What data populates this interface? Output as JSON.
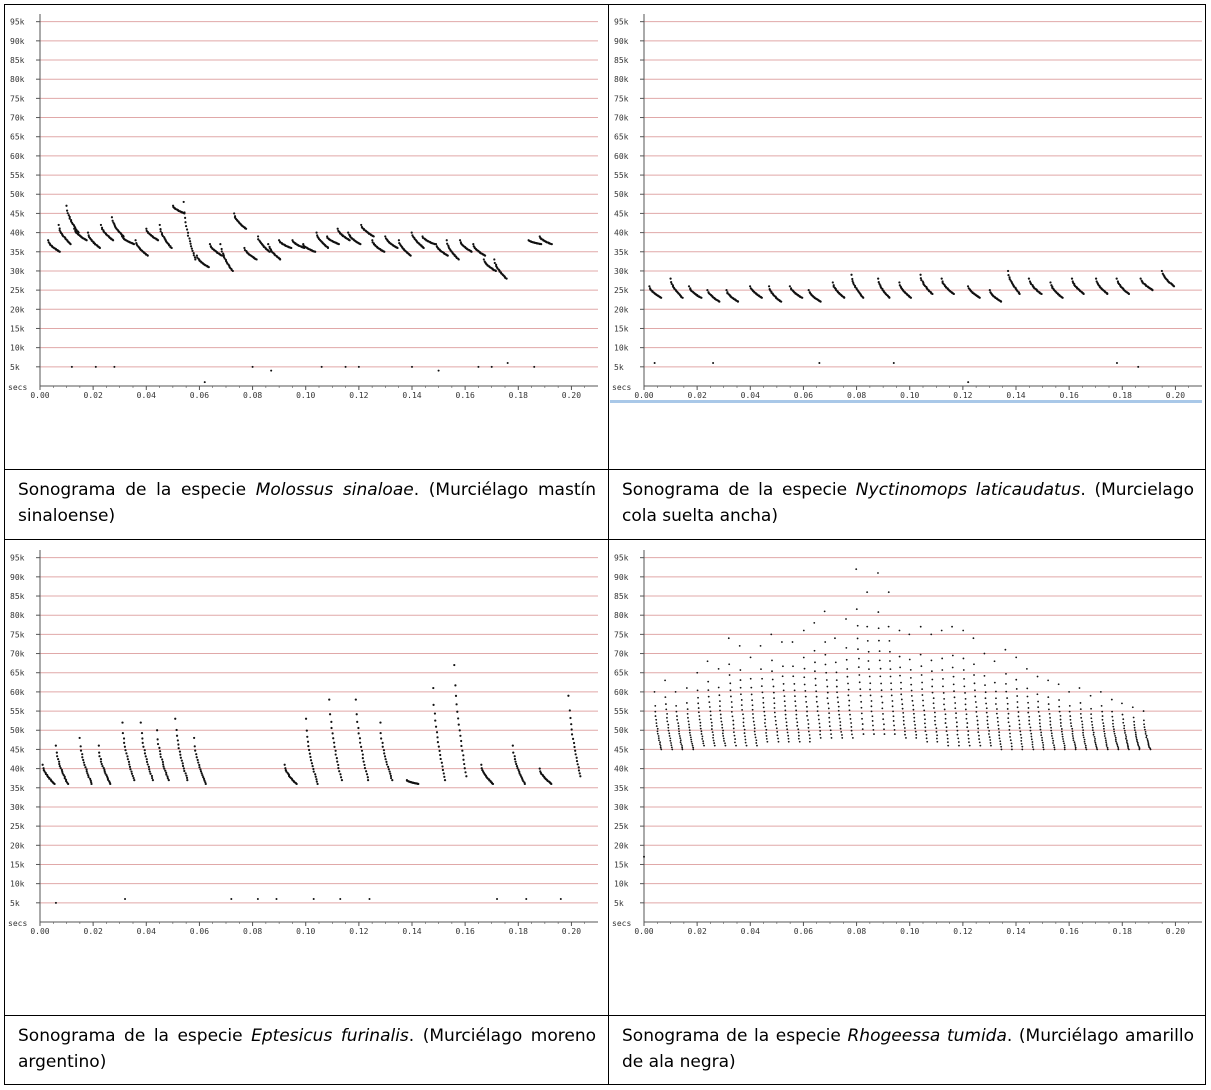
{
  "panels": [
    {
      "id": "molossus",
      "caption_prefix": "Sonograma de la especie",
      "species": "Molossus sinaloae",
      "caption_suffix": ". (Murciélago mastín sinaloense)",
      "chart_data": {
        "type": "scatter",
        "xlabel": "secs",
        "ylim": [
          0,
          97
        ],
        "xlim": [
          0,
          0.21
        ],
        "y_ticks": [
          "5k",
          "10k",
          "15k",
          "20k",
          "25k",
          "30k",
          "35k",
          "40k",
          "45k",
          "50k",
          "55k",
          "60k",
          "65k",
          "70k",
          "75k",
          "80k",
          "85k",
          "90k",
          "95k"
        ],
        "x_ticks": [
          "0.00",
          "0.02",
          "0.04",
          "0.06",
          "0.08",
          "0.10",
          "0.12",
          "0.14",
          "0.16",
          "0.18",
          "0.20"
        ],
        "calls": [
          {
            "t": 0.003,
            "f_start": 38,
            "f_end": 35
          },
          {
            "t": 0.007,
            "f_start": 42,
            "f_end": 37
          },
          {
            "t": 0.01,
            "f_start": 47,
            "f_end": 40
          },
          {
            "t": 0.013,
            "f_start": 41,
            "f_end": 38
          },
          {
            "t": 0.018,
            "f_start": 40,
            "f_end": 36
          },
          {
            "t": 0.023,
            "f_start": 42,
            "f_end": 38
          },
          {
            "t": 0.027,
            "f_start": 44,
            "f_end": 39
          },
          {
            "t": 0.031,
            "f_start": 39,
            "f_end": 37
          },
          {
            "t": 0.036,
            "f_start": 38,
            "f_end": 34
          },
          {
            "t": 0.04,
            "f_start": 41,
            "f_end": 38
          },
          {
            "t": 0.045,
            "f_start": 42,
            "f_end": 36
          },
          {
            "t": 0.05,
            "f_start": 47,
            "f_end": 45
          },
          {
            "t": 0.054,
            "f_start": 48,
            "f_end": 33
          },
          {
            "t": 0.059,
            "f_start": 34,
            "f_end": 31
          },
          {
            "t": 0.064,
            "f_start": 37,
            "f_end": 34
          },
          {
            "t": 0.068,
            "f_start": 37,
            "f_end": 30
          },
          {
            "t": 0.073,
            "f_start": 45,
            "f_end": 41
          },
          {
            "t": 0.077,
            "f_start": 36,
            "f_end": 33
          },
          {
            "t": 0.082,
            "f_start": 39,
            "f_end": 35
          },
          {
            "t": 0.086,
            "f_start": 37,
            "f_end": 33
          },
          {
            "t": 0.09,
            "f_start": 38,
            "f_end": 36
          },
          {
            "t": 0.095,
            "f_start": 38,
            "f_end": 36
          },
          {
            "t": 0.099,
            "f_start": 37,
            "f_end": 35
          },
          {
            "t": 0.104,
            "f_start": 40,
            "f_end": 36
          },
          {
            "t": 0.108,
            "f_start": 39,
            "f_end": 37
          },
          {
            "t": 0.112,
            "f_start": 41,
            "f_end": 38
          },
          {
            "t": 0.116,
            "f_start": 40,
            "f_end": 37
          },
          {
            "t": 0.121,
            "f_start": 42,
            "f_end": 39
          },
          {
            "t": 0.125,
            "f_start": 38,
            "f_end": 35
          },
          {
            "t": 0.13,
            "f_start": 39,
            "f_end": 36
          },
          {
            "t": 0.135,
            "f_start": 38,
            "f_end": 34
          },
          {
            "t": 0.14,
            "f_start": 40,
            "f_end": 36
          },
          {
            "t": 0.144,
            "f_start": 39,
            "f_end": 37
          },
          {
            "t": 0.149,
            "f_start": 37,
            "f_end": 34
          },
          {
            "t": 0.153,
            "f_start": 38,
            "f_end": 33
          },
          {
            "t": 0.158,
            "f_start": 38,
            "f_end": 35
          },
          {
            "t": 0.163,
            "f_start": 37,
            "f_end": 34
          },
          {
            "t": 0.167,
            "f_start": 33,
            "f_end": 30
          },
          {
            "t": 0.171,
            "f_start": 33,
            "f_end": 28
          },
          {
            "t": 0.184,
            "f_start": 38,
            "f_end": 37
          },
          {
            "t": 0.188,
            "f_start": 39,
            "f_end": 37
          }
        ],
        "noise": [
          {
            "t": 0.012,
            "f": 5
          },
          {
            "t": 0.021,
            "f": 5
          },
          {
            "t": 0.028,
            "f": 5
          },
          {
            "t": 0.062,
            "f": 1
          },
          {
            "t": 0.08,
            "f": 5
          },
          {
            "t": 0.087,
            "f": 4
          },
          {
            "t": 0.106,
            "f": 5
          },
          {
            "t": 0.115,
            "f": 5
          },
          {
            "t": 0.12,
            "f": 5
          },
          {
            "t": 0.14,
            "f": 5
          },
          {
            "t": 0.15,
            "f": 4
          },
          {
            "t": 0.165,
            "f": 5
          },
          {
            "t": 0.17,
            "f": 5
          },
          {
            "t": 0.176,
            "f": 6
          },
          {
            "t": 0.186,
            "f": 5
          }
        ]
      }
    },
    {
      "id": "nyctinomops",
      "caption_prefix": "Sonograma de la especie",
      "species": "Nyctinomops laticaudatus",
      "caption_suffix": ". (Murcielago cola suelta ancha)",
      "chart_data": {
        "type": "scatter",
        "xlabel": "secs",
        "ylim": [
          0,
          97
        ],
        "xlim": [
          0,
          0.21
        ],
        "y_ticks": [
          "5k",
          "10k",
          "15k",
          "20k",
          "25k",
          "30k",
          "35k",
          "40k",
          "45k",
          "50k",
          "55k",
          "60k",
          "65k",
          "70k",
          "75k",
          "80k",
          "85k",
          "90k",
          "95k"
        ],
        "x_ticks": [
          "0.00",
          "0.02",
          "0.04",
          "0.06",
          "0.08",
          "0.10",
          "0.12",
          "0.14",
          "0.16",
          "0.18",
          "0.20"
        ],
        "calls": [
          {
            "t": 0.002,
            "f_start": 26,
            "f_end": 23
          },
          {
            "t": 0.01,
            "f_start": 28,
            "f_end": 23
          },
          {
            "t": 0.017,
            "f_start": 26,
            "f_end": 23
          },
          {
            "t": 0.024,
            "f_start": 25,
            "f_end": 22
          },
          {
            "t": 0.031,
            "f_start": 25,
            "f_end": 22
          },
          {
            "t": 0.04,
            "f_start": 26,
            "f_end": 23
          },
          {
            "t": 0.047,
            "f_start": 26,
            "f_end": 22
          },
          {
            "t": 0.055,
            "f_start": 26,
            "f_end": 23
          },
          {
            "t": 0.062,
            "f_start": 25,
            "f_end": 22
          },
          {
            "t": 0.071,
            "f_start": 27,
            "f_end": 23
          },
          {
            "t": 0.078,
            "f_start": 29,
            "f_end": 23
          },
          {
            "t": 0.088,
            "f_start": 28,
            "f_end": 23
          },
          {
            "t": 0.096,
            "f_start": 27,
            "f_end": 23
          },
          {
            "t": 0.104,
            "f_start": 29,
            "f_end": 24
          },
          {
            "t": 0.112,
            "f_start": 28,
            "f_end": 24
          },
          {
            "t": 0.122,
            "f_start": 26,
            "f_end": 23
          },
          {
            "t": 0.13,
            "f_start": 25,
            "f_end": 22
          },
          {
            "t": 0.137,
            "f_start": 30,
            "f_end": 24
          },
          {
            "t": 0.145,
            "f_start": 28,
            "f_end": 24
          },
          {
            "t": 0.153,
            "f_start": 27,
            "f_end": 23
          },
          {
            "t": 0.161,
            "f_start": 28,
            "f_end": 24
          },
          {
            "t": 0.17,
            "f_start": 28,
            "f_end": 24
          },
          {
            "t": 0.178,
            "f_start": 28,
            "f_end": 24
          },
          {
            "t": 0.187,
            "f_start": 28,
            "f_end": 25
          },
          {
            "t": 0.195,
            "f_start": 30,
            "f_end": 26
          }
        ],
        "noise": [
          {
            "t": 0.004,
            "f": 6
          },
          {
            "t": 0.026,
            "f": 6
          },
          {
            "t": 0.066,
            "f": 6
          },
          {
            "t": 0.094,
            "f": 6
          },
          {
            "t": 0.122,
            "f": 1
          },
          {
            "t": 0.178,
            "f": 6
          },
          {
            "t": 0.186,
            "f": 5
          }
        ]
      }
    },
    {
      "id": "eptesicus",
      "caption_prefix": "Sonograma de la especie",
      "species": "Eptesicus furinalis",
      "caption_suffix": ". (Murciélago moreno argentino)",
      "chart_data": {
        "type": "scatter",
        "xlabel": "secs",
        "ylim": [
          0,
          97
        ],
        "xlim": [
          0,
          0.21
        ],
        "y_ticks": [
          "5k",
          "10k",
          "15k",
          "20k",
          "25k",
          "30k",
          "35k",
          "40k",
          "45k",
          "50k",
          "55k",
          "60k",
          "65k",
          "70k",
          "75k",
          "80k",
          "85k",
          "90k",
          "95k"
        ],
        "x_ticks": [
          "0.00",
          "0.02",
          "0.04",
          "0.06",
          "0.08",
          "0.10",
          "0.12",
          "0.14",
          "0.16",
          "0.18",
          "0.20"
        ],
        "calls": [
          {
            "t": 0.001,
            "f_start": 41,
            "f_end": 36
          },
          {
            "t": 0.006,
            "f_start": 46,
            "f_end": 36
          },
          {
            "t": 0.015,
            "f_start": 48,
            "f_end": 36
          },
          {
            "t": 0.022,
            "f_start": 46,
            "f_end": 36
          },
          {
            "t": 0.031,
            "f_start": 52,
            "f_end": 37
          },
          {
            "t": 0.038,
            "f_start": 52,
            "f_end": 37
          },
          {
            "t": 0.044,
            "f_start": 50,
            "f_end": 37
          },
          {
            "t": 0.051,
            "f_start": 53,
            "f_end": 37
          },
          {
            "t": 0.058,
            "f_start": 48,
            "f_end": 36
          },
          {
            "t": 0.092,
            "f_start": 41,
            "f_end": 36
          },
          {
            "t": 0.1,
            "f_start": 53,
            "f_end": 36
          },
          {
            "t": 0.109,
            "f_start": 58,
            "f_end": 37
          },
          {
            "t": 0.119,
            "f_start": 58,
            "f_end": 37
          },
          {
            "t": 0.128,
            "f_start": 52,
            "f_end": 37
          },
          {
            "t": 0.138,
            "f_start": 37,
            "f_end": 36
          },
          {
            "t": 0.148,
            "f_start": 61,
            "f_end": 37
          },
          {
            "t": 0.156,
            "f_start": 67,
            "f_end": 38
          },
          {
            "t": 0.166,
            "f_start": 41,
            "f_end": 36
          },
          {
            "t": 0.178,
            "f_start": 46,
            "f_end": 36
          },
          {
            "t": 0.188,
            "f_start": 40,
            "f_end": 36
          },
          {
            "t": 0.199,
            "f_start": 59,
            "f_end": 38
          }
        ],
        "noise": [
          {
            "t": 0.006,
            "f": 5
          },
          {
            "t": 0.032,
            "f": 6
          },
          {
            "t": 0.072,
            "f": 6
          },
          {
            "t": 0.082,
            "f": 6
          },
          {
            "t": 0.089,
            "f": 6
          },
          {
            "t": 0.103,
            "f": 6
          },
          {
            "t": 0.113,
            "f": 6
          },
          {
            "t": 0.124,
            "f": 6
          },
          {
            "t": 0.172,
            "f": 6
          },
          {
            "t": 0.183,
            "f": 6
          },
          {
            "t": 0.196,
            "f": 6
          }
        ]
      }
    },
    {
      "id": "rhogeessa",
      "caption_prefix": "Sonograma de la especie",
      "species": "Rhogeessa tumida",
      "caption_suffix": ". (Murciélago amarillo de ala negra)",
      "chart_data": {
        "type": "scatter",
        "xlabel": "secs",
        "ylim": [
          0,
          97
        ],
        "xlim": [
          0,
          0.21
        ],
        "y_ticks": [
          "5k",
          "10k",
          "15k",
          "20k",
          "25k",
          "30k",
          "35k",
          "40k",
          "45k",
          "50k",
          "55k",
          "60k",
          "65k",
          "70k",
          "75k",
          "80k",
          "85k",
          "90k",
          "95k"
        ],
        "x_ticks": [
          "0.00",
          "0.02",
          "0.04",
          "0.06",
          "0.08",
          "0.10",
          "0.12",
          "0.14",
          "0.16",
          "0.18",
          "0.20"
        ],
        "calls": [
          {
            "t": 0.004,
            "f_start": 60,
            "f_end": 45
          },
          {
            "t": 0.008,
            "f_start": 63,
            "f_end": 45
          },
          {
            "t": 0.012,
            "f_start": 60,
            "f_end": 45
          },
          {
            "t": 0.016,
            "f_start": 61,
            "f_end": 45
          },
          {
            "t": 0.02,
            "f_start": 65,
            "f_end": 46
          },
          {
            "t": 0.024,
            "f_start": 68,
            "f_end": 46
          },
          {
            "t": 0.028,
            "f_start": 66,
            "f_end": 46
          },
          {
            "t": 0.032,
            "f_start": 74,
            "f_end": 46
          },
          {
            "t": 0.036,
            "f_start": 72,
            "f_end": 46
          },
          {
            "t": 0.04,
            "f_start": 69,
            "f_end": 46
          },
          {
            "t": 0.044,
            "f_start": 72,
            "f_end": 47
          },
          {
            "t": 0.048,
            "f_start": 75,
            "f_end": 47
          },
          {
            "t": 0.052,
            "f_start": 73,
            "f_end": 47
          },
          {
            "t": 0.056,
            "f_start": 73,
            "f_end": 47
          },
          {
            "t": 0.06,
            "f_start": 76,
            "f_end": 47
          },
          {
            "t": 0.064,
            "f_start": 78,
            "f_end": 48
          },
          {
            "t": 0.068,
            "f_start": 81,
            "f_end": 48
          },
          {
            "t": 0.072,
            "f_start": 74,
            "f_end": 48
          },
          {
            "t": 0.076,
            "f_start": 79,
            "f_end": 48
          },
          {
            "t": 0.08,
            "f_start": 92,
            "f_end": 49
          },
          {
            "t": 0.084,
            "f_start": 86,
            "f_end": 49
          },
          {
            "t": 0.088,
            "f_start": 91,
            "f_end": 49
          },
          {
            "t": 0.092,
            "f_start": 86,
            "f_end": 49
          },
          {
            "t": 0.096,
            "f_start": 76,
            "f_end": 48
          },
          {
            "t": 0.1,
            "f_start": 75,
            "f_end": 48
          },
          {
            "t": 0.104,
            "f_start": 77,
            "f_end": 47
          },
          {
            "t": 0.108,
            "f_start": 75,
            "f_end": 47
          },
          {
            "t": 0.112,
            "f_start": 76,
            "f_end": 46
          },
          {
            "t": 0.116,
            "f_start": 77,
            "f_end": 46
          },
          {
            "t": 0.12,
            "f_start": 76,
            "f_end": 46
          },
          {
            "t": 0.124,
            "f_start": 74,
            "f_end": 46
          },
          {
            "t": 0.128,
            "f_start": 70,
            "f_end": 46
          },
          {
            "t": 0.132,
            "f_start": 68,
            "f_end": 45
          },
          {
            "t": 0.136,
            "f_start": 71,
            "f_end": 45
          },
          {
            "t": 0.14,
            "f_start": 69,
            "f_end": 45
          },
          {
            "t": 0.144,
            "f_start": 66,
            "f_end": 45
          },
          {
            "t": 0.148,
            "f_start": 64,
            "f_end": 45
          },
          {
            "t": 0.152,
            "f_start": 63,
            "f_end": 45
          },
          {
            "t": 0.156,
            "f_start": 62,
            "f_end": 45
          },
          {
            "t": 0.16,
            "f_start": 60,
            "f_end": 45
          },
          {
            "t": 0.164,
            "f_start": 61,
            "f_end": 45
          },
          {
            "t": 0.168,
            "f_start": 59,
            "f_end": 45
          },
          {
            "t": 0.172,
            "f_start": 60,
            "f_end": 45
          },
          {
            "t": 0.176,
            "f_start": 58,
            "f_end": 45
          },
          {
            "t": 0.18,
            "f_start": 57,
            "f_end": 45
          },
          {
            "t": 0.184,
            "f_start": 56,
            "f_end": 45
          },
          {
            "t": 0.188,
            "f_start": 55,
            "f_end": 45
          }
        ],
        "noise": [
          {
            "t": 0.0,
            "f": 17
          }
        ]
      }
    }
  ],
  "colors": {
    "gridline": "#e0a8a8",
    "axis": "#555555",
    "dots": "#111111",
    "bottom_bar": "#a9c8e8"
  }
}
